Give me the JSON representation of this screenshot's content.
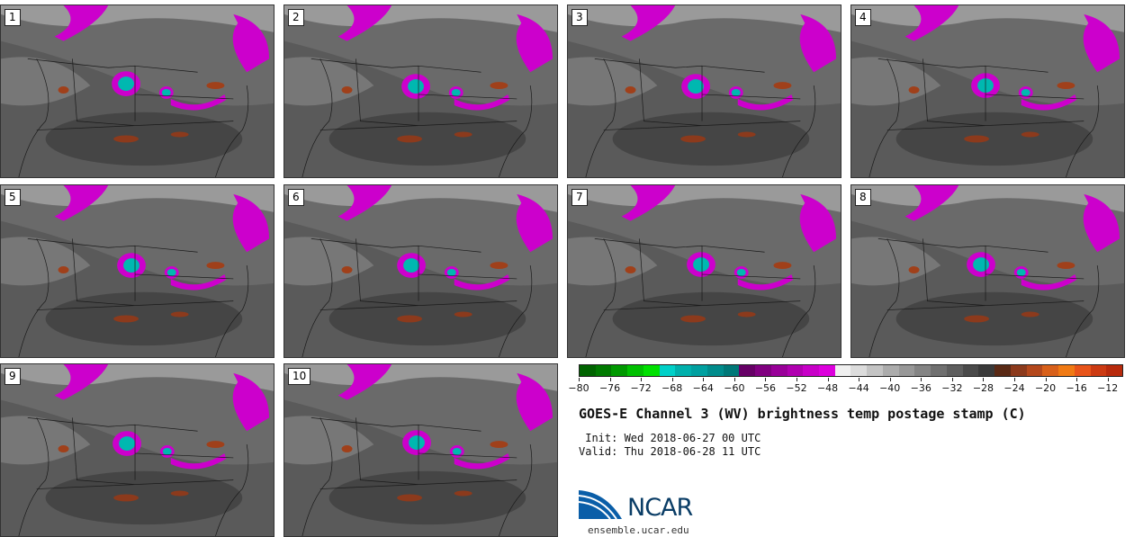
{
  "stamps": [
    "1",
    "2",
    "3",
    "4",
    "5",
    "6",
    "7",
    "8",
    "9",
    "10"
  ],
  "colorbar": {
    "colors": [
      "#006400",
      "#007a00",
      "#009900",
      "#00c000",
      "#00e000",
      "#00d0c8",
      "#00b0ac",
      "#00a0a0",
      "#008c8c",
      "#007878",
      "#660066",
      "#800080",
      "#990099",
      "#b000b0",
      "#c800c8",
      "#dd00dd",
      "#f0f0f0",
      "#dcdcdc",
      "#c4c4c4",
      "#acacac",
      "#989898",
      "#848484",
      "#707070",
      "#5e5e5e",
      "#4a4a4a",
      "#3a3a3a",
      "#5a2a16",
      "#8c3a1c",
      "#b4481c",
      "#d8601a",
      "#f07a14",
      "#e8541a",
      "#cc3a12",
      "#b82a0c"
    ],
    "tick_labels": [
      "−80",
      "−76",
      "−72",
      "−68",
      "−64",
      "−60",
      "−56",
      "−52",
      "−48",
      "−44",
      "−40",
      "−36",
      "−32",
      "−28",
      "−24",
      "−20",
      "−16",
      "−12"
    ],
    "range": [
      -80,
      -10
    ]
  },
  "title": "GOES-E Channel 3 (WV) brightness temp postage stamp (C)",
  "init": " Init: Wed 2018-06-27 00 UTC",
  "valid": "Valid: Thu 2018-06-28 11 UTC",
  "logo": {
    "text": "NCAR",
    "site": "ensemble.ucar.edu",
    "brand_color": "#0a5ea8"
  }
}
